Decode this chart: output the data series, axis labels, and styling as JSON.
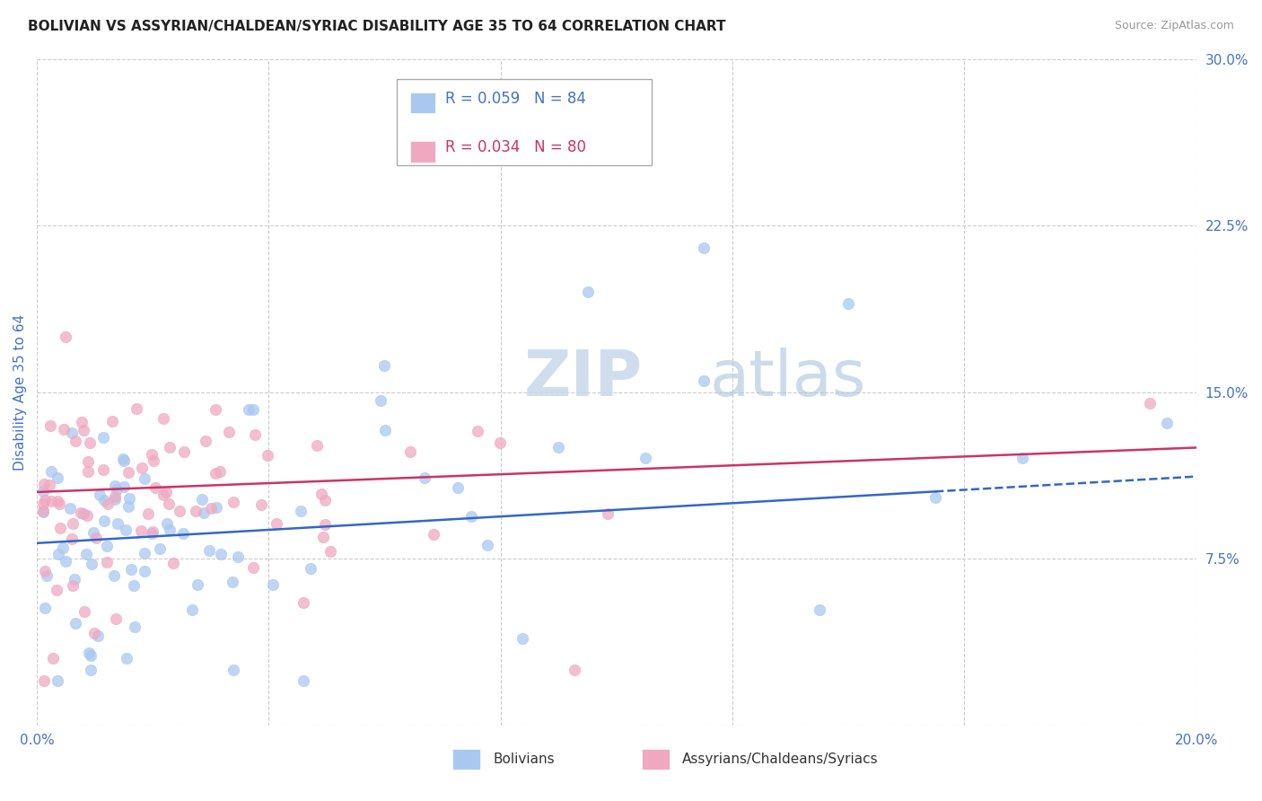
{
  "title": "BOLIVIAN VS ASSYRIAN/CHALDEAN/SYRIAC DISABILITY AGE 35 TO 64 CORRELATION CHART",
  "source": "Source: ZipAtlas.com",
  "ylabel": "Disability Age 35 to 64",
  "xlim": [
    0.0,
    0.2
  ],
  "ylim": [
    0.0,
    0.3
  ],
  "xticks": [
    0.0,
    0.04,
    0.08,
    0.12,
    0.16,
    0.2
  ],
  "yticks": [
    0.0,
    0.075,
    0.15,
    0.225,
    0.3
  ],
  "grid_color": "#cccccc",
  "background_color": "#ffffff",
  "bolivians_color": "#a8c8f0",
  "assyrians_color": "#f0a8c0",
  "trend_bolivians_color": "#3366cc",
  "trend_assyrians_color": "#cc3366",
  "r_bolivians": 0.059,
  "n_bolivians": 84,
  "r_assyrians": 0.034,
  "n_assyrians": 80,
  "watermark_zip": "ZIP",
  "watermark_atlas": "atlas",
  "title_color": "#222222",
  "axis_label_color": "#4472c4",
  "tick_label_color": "#4472c4",
  "legend_label1": "Bolivians",
  "legend_label2": "Assyrians/Chaldeans/Syriacs"
}
